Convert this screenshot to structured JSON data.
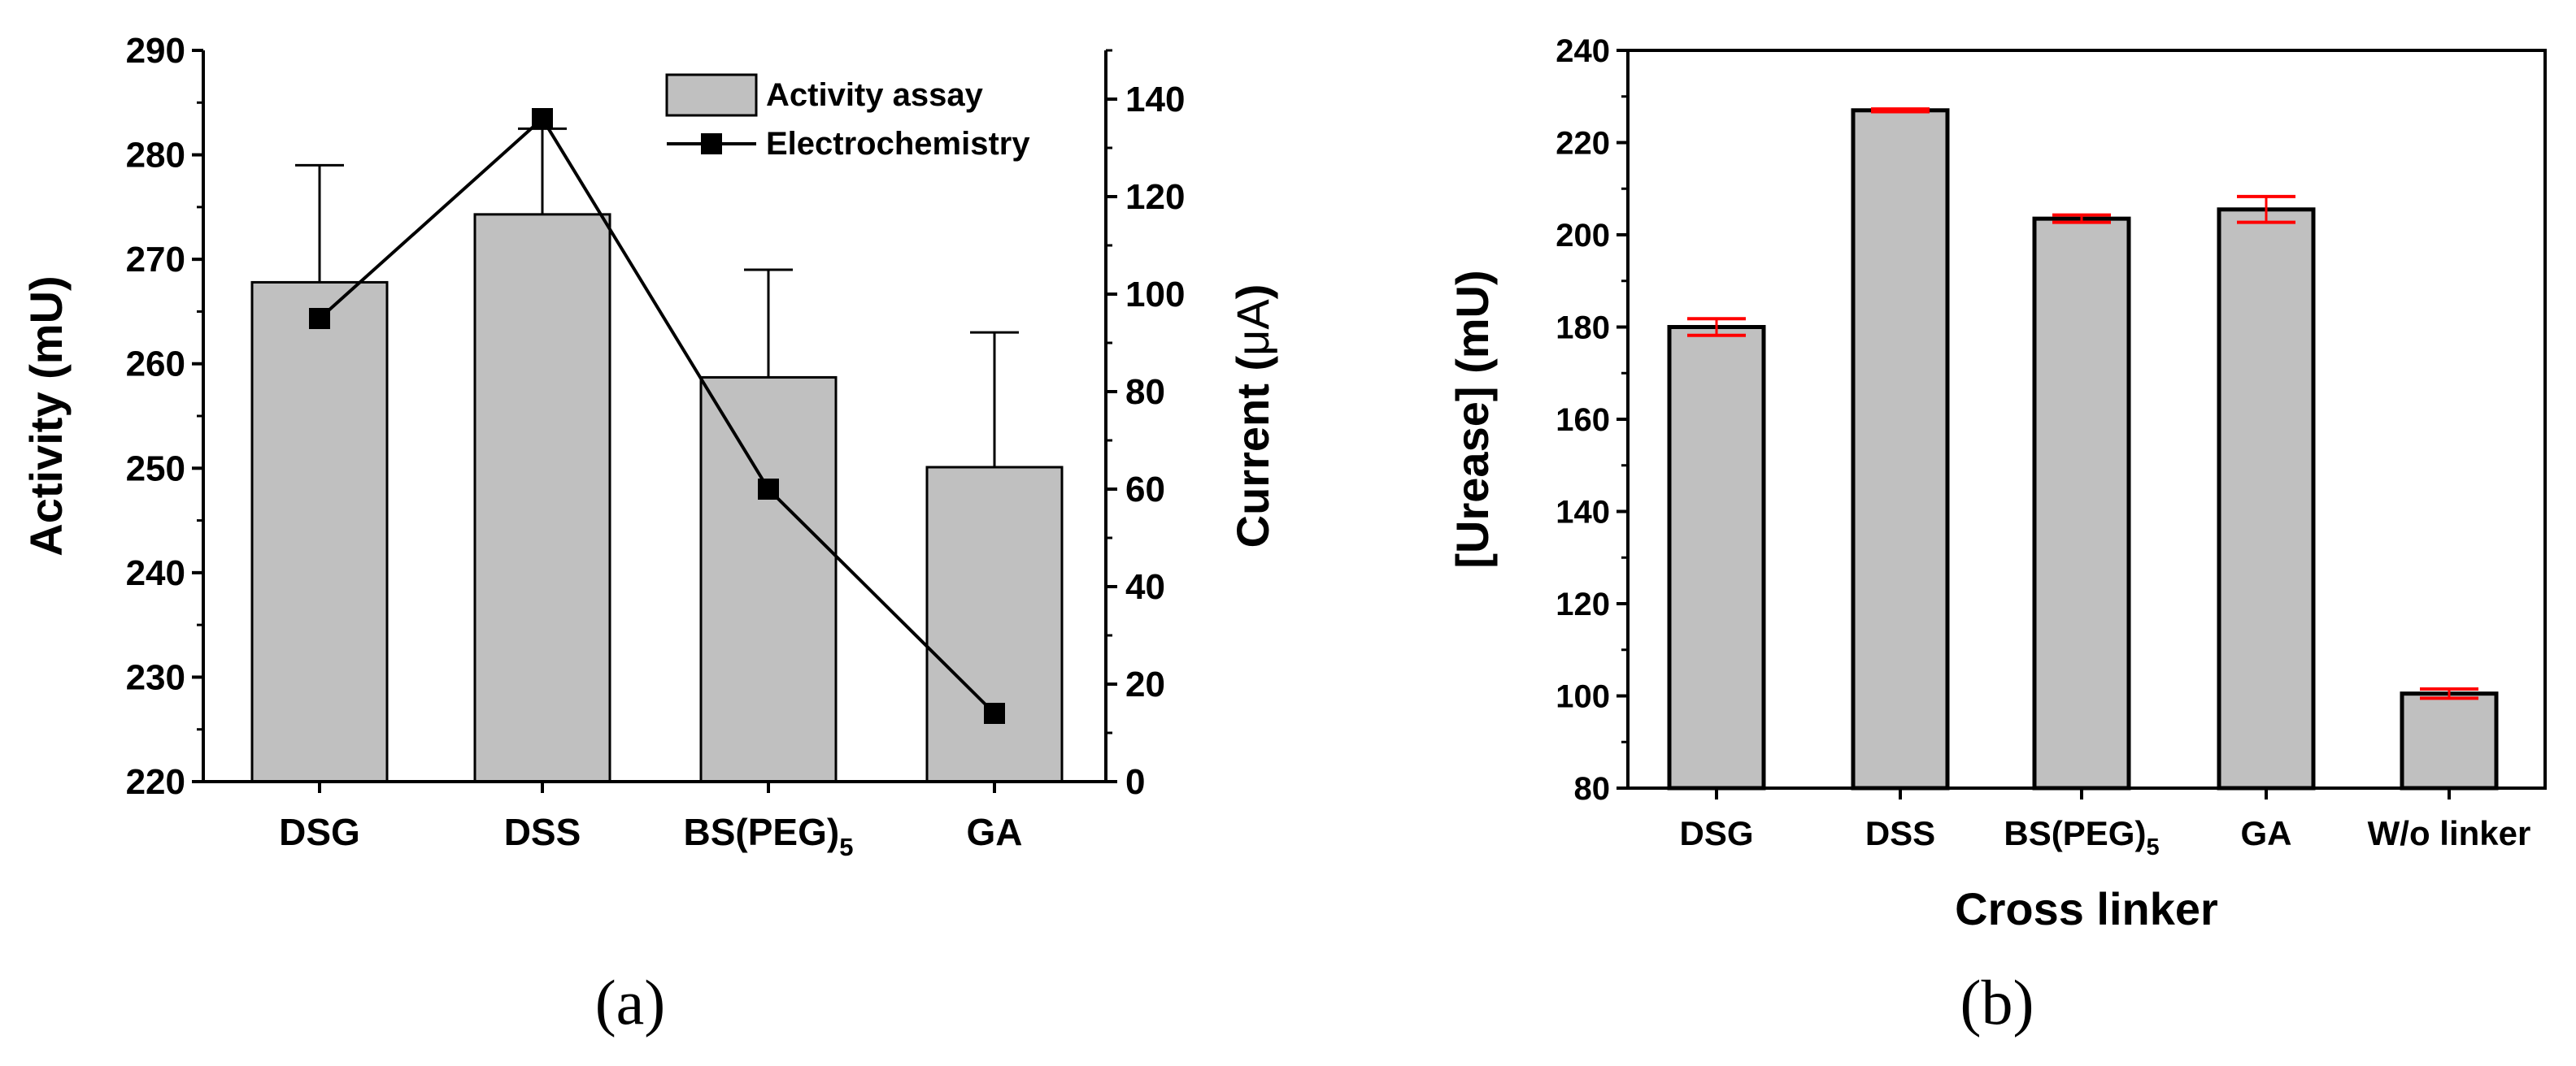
{
  "chart_data": [
    {
      "panel": "(a)",
      "type": "bar",
      "categories": [
        "DSG",
        "DSS",
        "BS(PEG)",
        "GA"
      ],
      "category_subscripts": [
        "",
        "",
        "5",
        ""
      ],
      "series": [
        {
          "name": "Activity assay",
          "axis": "left",
          "type": "bar",
          "values": [
            267.8,
            274.3,
            258.7,
            250.1
          ],
          "error_upper": [
            279.0,
            282.5,
            269.0,
            263.0
          ]
        },
        {
          "name": "Electrochemistry",
          "axis": "right",
          "type": "line",
          "values": [
            95,
            136,
            60,
            14
          ]
        }
      ],
      "ylabel_left": "Activity (mU)",
      "ylabel_right_prefix": "Current (",
      "ylabel_right_unit": "μA",
      "ylabel_right_suffix": ")",
      "ylim_left": [
        220,
        290
      ],
      "yticks_left": [
        "220",
        "230",
        "240",
        "250",
        "260",
        "270",
        "280",
        "290"
      ],
      "ylim_right": [
        0,
        150
      ],
      "yticks_right": [
        "0",
        "20",
        "40",
        "60",
        "80",
        "100",
        "120",
        "140"
      ],
      "legend": [
        "Activity assay",
        "Electrochemistry"
      ],
      "bar_color": "#c0c0c0",
      "line_color": "#000000"
    },
    {
      "panel": "(b)",
      "type": "bar",
      "categories": [
        "DSG",
        "DSS",
        "BS(PEG)",
        "GA",
        "W/o linker"
      ],
      "category_subscripts": [
        "",
        "",
        "5",
        "",
        ""
      ],
      "values": [
        180,
        227,
        203.5,
        205.5,
        100.5
      ],
      "error": [
        1.8,
        0.3,
        0.8,
        2.8,
        1.0
      ],
      "xlabel": "Cross linker",
      "ylabel": "[Urease] (mU)",
      "ylim": [
        80,
        240
      ],
      "yticks": [
        "80",
        "100",
        "120",
        "140",
        "160",
        "180",
        "200",
        "220",
        "240"
      ],
      "bar_color": "#c0c0c0",
      "error_color": "#ff0000"
    }
  ]
}
